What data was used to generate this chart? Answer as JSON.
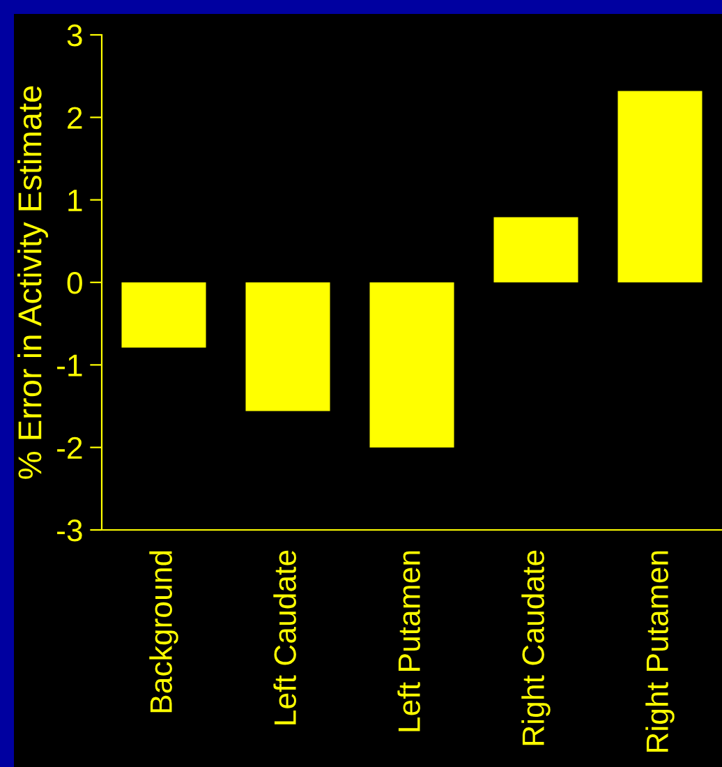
{
  "chart_data": {
    "type": "bar",
    "ylabel": "% Error in Activity Estimate",
    "categories": [
      "Background",
      "Left Caudate",
      "Left Putamen",
      "Right Caudate",
      "Right Putamen"
    ],
    "values": [
      -0.79,
      -1.56,
      -2.0,
      0.79,
      2.32
    ],
    "color": "#ffff00",
    "ylim": [
      -3,
      3
    ],
    "yticks": [
      -3,
      -2,
      -1,
      0,
      1,
      2,
      3
    ]
  }
}
